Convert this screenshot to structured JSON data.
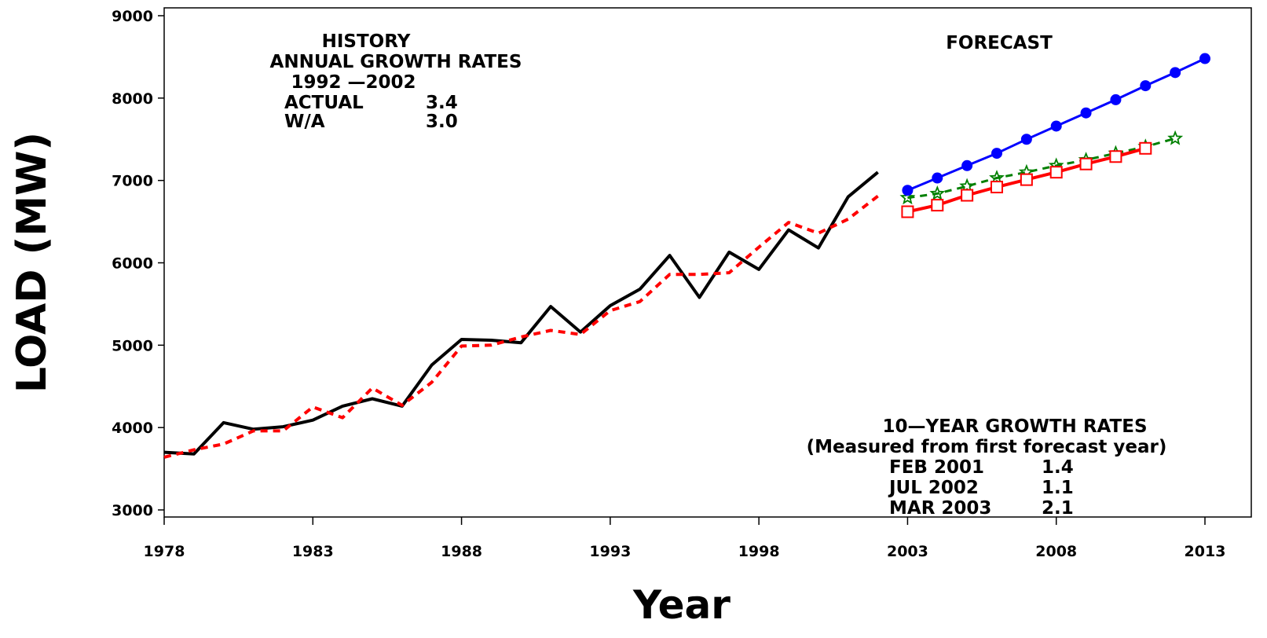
{
  "chart_data": {
    "type": "line",
    "xlabel": "Year",
    "ylabel": "LOAD (MW)",
    "xlim": [
      1978,
      2013
    ],
    "ylim": [
      3000,
      9000
    ],
    "x_ticks": [
      "1978",
      "1983",
      "1988",
      "1993",
      "1998",
      "2003",
      "2008",
      "2013"
    ],
    "y_ticks": [
      "3000",
      "4000",
      "5000",
      "6000",
      "7000",
      "8000",
      "9000"
    ],
    "grid": false,
    "annotations": {
      "history_title": "HISTORY",
      "history_subtitle": "ANNUAL GROWTH RATES",
      "history_range": "1992 —2002",
      "actual_label": "ACTUAL",
      "actual_value": "3.4",
      "wa_label": "W/A",
      "wa_value": "3.0",
      "forecast_title": "FORECAST",
      "growth_title": "10—YEAR GROWTH RATES",
      "growth_subtitle": "(Measured from first forecast year)",
      "rates": [
        {
          "label": "FEB 2001",
          "value": "1.4"
        },
        {
          "label": "JUL 2002",
          "value": "1.1"
        },
        {
          "label": "MAR 2003",
          "value": "2.1"
        }
      ]
    },
    "series": [
      {
        "key": "actual",
        "color": "#000000",
        "style": "solid",
        "x": [
          1978,
          1979,
          1980,
          1981,
          1982,
          1983,
          1984,
          1985,
          1986,
          1987,
          1988,
          1989,
          1990,
          1991,
          1992,
          1993,
          1994,
          1995,
          1996,
          1997,
          1998,
          1999,
          2000,
          2001,
          2002
        ],
        "y": [
          3700,
          3680,
          4060,
          3980,
          4010,
          4090,
          4260,
          4350,
          4260,
          4760,
          5070,
          5060,
          5030,
          5470,
          5160,
          5480,
          5680,
          6090,
          5580,
          6130,
          5920,
          6400,
          6180,
          6800,
          7100
        ]
      },
      {
        "key": "weather_adjusted",
        "color": "#ff0000",
        "style": "dashed",
        "x": [
          1978,
          1979,
          1980,
          1981,
          1982,
          1983,
          1984,
          1985,
          1986,
          1987,
          1988,
          1989,
          1990,
          1991,
          1992,
          1993,
          1994,
          1995,
          1996,
          1997,
          1998,
          1999,
          2000,
          2001,
          2002
        ],
        "y": [
          3640,
          3730,
          3800,
          3960,
          3960,
          4250,
          4120,
          4480,
          4270,
          4550,
          4990,
          5000,
          5100,
          5180,
          5130,
          5420,
          5530,
          5860,
          5860,
          5880,
          6190,
          6490,
          6360,
          6530,
          6810
        ]
      },
      {
        "key": "feb2001",
        "color": "#008000",
        "style": "dashed",
        "marker": "star",
        "x": [
          2003,
          2004,
          2005,
          2006,
          2007,
          2008,
          2009,
          2010,
          2011,
          2012
        ],
        "y": [
          6790,
          6840,
          6930,
          7030,
          7100,
          7180,
          7250,
          7330,
          7410,
          7510
        ]
      },
      {
        "key": "jul2002",
        "color": "#ff0000",
        "style": "solid",
        "marker": "square",
        "x": [
          2003,
          2004,
          2005,
          2006,
          2007,
          2008,
          2009,
          2010,
          2011
        ],
        "y": [
          6620,
          6700,
          6820,
          6920,
          7010,
          7100,
          7200,
          7290,
          7390
        ]
      },
      {
        "key": "mar2003",
        "color": "#0000ff",
        "style": "solid",
        "marker": "circle",
        "x": [
          2003,
          2004,
          2005,
          2006,
          2007,
          2008,
          2009,
          2010,
          2011,
          2012,
          2013
        ],
        "y": [
          6880,
          7030,
          7180,
          7330,
          7500,
          7660,
          7820,
          7980,
          8150,
          8310,
          8480
        ]
      }
    ]
  }
}
